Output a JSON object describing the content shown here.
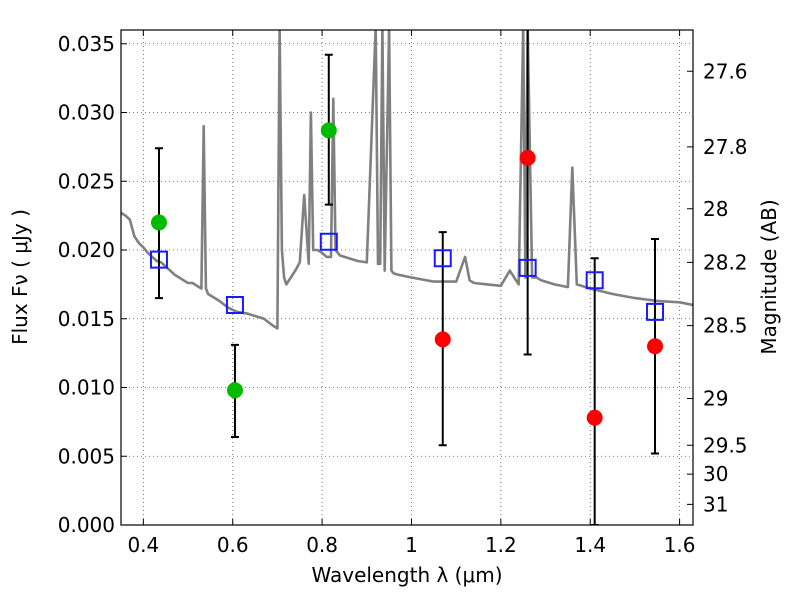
{
  "chart_data": {
    "type": "scatter",
    "xlabel": "Wavelength  λ (μm)",
    "ylabel": "Flux  Fν  ( μJy )",
    "y2label": "Magnitude (AB)",
    "xlim": [
      0.35,
      1.63
    ],
    "ylim": [
      0.0,
      0.036
    ],
    "grid": true,
    "x_ticks": [
      0.4,
      0.6,
      0.8,
      1.0,
      1.2,
      1.4,
      1.6
    ],
    "x_tick_labels": [
      "0.4",
      "0.6",
      "0.8",
      "1",
      "1.2",
      "1.4",
      "1.6"
    ],
    "y_ticks": [
      0.0,
      0.005,
      0.01,
      0.015,
      0.02,
      0.025,
      0.03,
      0.035
    ],
    "y_tick_labels": [
      "0.000",
      "0.005",
      "0.010",
      "0.015",
      "0.020",
      "0.025",
      "0.030",
      "0.035"
    ],
    "y2_ticks": [
      {
        "flux": 0.033,
        "label": "27.6"
      },
      {
        "flux": 0.0275,
        "label": "27.8"
      },
      {
        "flux": 0.023,
        "label": "28"
      },
      {
        "flux": 0.0191,
        "label": "28.2"
      },
      {
        "flux": 0.0145,
        "label": "28.5"
      },
      {
        "flux": 0.0092,
        "label": "29"
      },
      {
        "flux": 0.0058,
        "label": "29.5"
      },
      {
        "flux": 0.0037,
        "label": "30"
      },
      {
        "flux": 0.0015,
        "label": "31"
      }
    ],
    "series": [
      {
        "color": "#808080",
        "kind": "line",
        "x": [
          0.35,
          0.36,
          0.37,
          0.38,
          0.39,
          0.4,
          0.41,
          0.42,
          0.43,
          0.44,
          0.45,
          0.46,
          0.47,
          0.48,
          0.49,
          0.5,
          0.51,
          0.52,
          0.53,
          0.535,
          0.54,
          0.545,
          0.55,
          0.57,
          0.59,
          0.61,
          0.63,
          0.65,
          0.67,
          0.69,
          0.7,
          0.705,
          0.71,
          0.715,
          0.72,
          0.73,
          0.74,
          0.75,
          0.76,
          0.77,
          0.775,
          0.78,
          0.79,
          0.8,
          0.81,
          0.82,
          0.825,
          0.83,
          0.84,
          0.86,
          0.88,
          0.9,
          0.92,
          0.925,
          0.93,
          0.935,
          0.94,
          0.95,
          0.955,
          0.96,
          0.97,
          1.0,
          1.05,
          1.1,
          1.12,
          1.13,
          1.14,
          1.17,
          1.2,
          1.22,
          1.24,
          1.25,
          1.255,
          1.26,
          1.27,
          1.28,
          1.29,
          1.3,
          1.32,
          1.35,
          1.36,
          1.37,
          1.4,
          1.45,
          1.5,
          1.55,
          1.6,
          1.63
        ],
        "y": [
          0.0227,
          0.0225,
          0.0222,
          0.021,
          0.0205,
          0.0202,
          0.0198,
          0.0195,
          0.0192,
          0.0191,
          0.0188,
          0.0185,
          0.0182,
          0.018,
          0.0178,
          0.0176,
          0.0176,
          0.0174,
          0.0172,
          0.029,
          0.0172,
          0.0168,
          0.0167,
          0.0163,
          0.0158,
          0.0155,
          0.0154,
          0.0152,
          0.015,
          0.0145,
          0.0143,
          0.0362,
          0.02,
          0.018,
          0.0175,
          0.018,
          0.0185,
          0.0191,
          0.024,
          0.019,
          0.03,
          0.02,
          0.02,
          0.0198,
          0.0195,
          0.0195,
          0.031,
          0.02,
          0.0196,
          0.0194,
          0.0192,
          0.0191,
          0.0362,
          0.019,
          0.019,
          0.0362,
          0.0185,
          0.0362,
          0.0185,
          0.0183,
          0.0182,
          0.018,
          0.0177,
          0.0177,
          0.0195,
          0.0178,
          0.0176,
          0.0175,
          0.0174,
          0.0185,
          0.0175,
          0.0362,
          0.018,
          0.0362,
          0.018,
          0.018,
          0.0178,
          0.0177,
          0.0175,
          0.0173,
          0.026,
          0.0175,
          0.0172,
          0.0168,
          0.0165,
          0.0163,
          0.0162,
          0.016
        ]
      },
      {
        "color": "#1a1aff",
        "kind": "open-square",
        "x": [
          0.435,
          0.605,
          0.815,
          1.07,
          1.26,
          1.41,
          1.545
        ],
        "y": [
          0.0193,
          0.016,
          0.0206,
          0.0194,
          0.0187,
          0.0178,
          0.0155
        ]
      },
      {
        "color": "#00bb00",
        "kind": "filled-circle",
        "x": [
          0.435,
          0.605,
          0.815
        ],
        "y": [
          0.022,
          0.0098,
          0.0287
        ],
        "err_low": [
          0.0055,
          0.0034,
          0.0054
        ],
        "err_high": [
          0.0054,
          0.0033,
          0.0055
        ]
      },
      {
        "color": "#ff0000",
        "kind": "filled-circle",
        "x": [
          1.07,
          1.26,
          1.41,
          1.545
        ],
        "y": [
          0.0135,
          0.0267,
          0.0078,
          0.013
        ],
        "err_low": [
          0.0077,
          0.0143,
          0.0078,
          0.0078
        ],
        "err_high": [
          0.0078,
          0.01,
          0.0116,
          0.0078
        ]
      }
    ]
  }
}
